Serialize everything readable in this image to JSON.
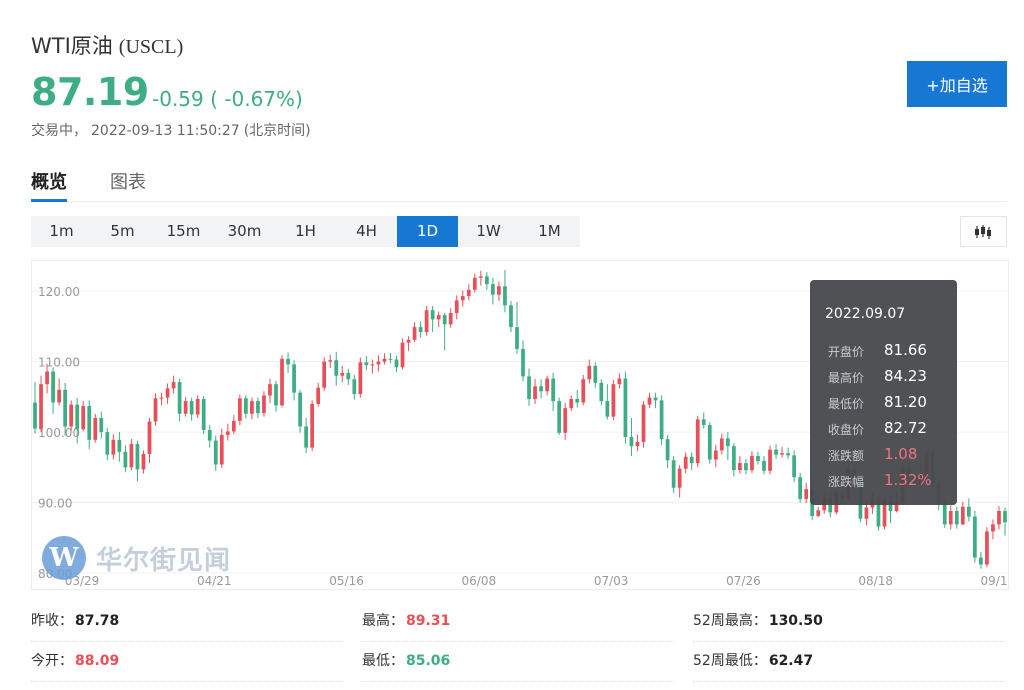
{
  "header": {
    "name": "WTI原油",
    "code": "(USCL)",
    "price": "87.19",
    "change": "-0.59 ( -0.67%)",
    "status": "交易中，",
    "datetime": "2022-09-13 11:50:27",
    "timezone": "(北京时间)",
    "add_button": "+加自选"
  },
  "tabs": [
    {
      "label": "概览",
      "active": true
    },
    {
      "label": "图表",
      "active": false
    }
  ],
  "intervals": [
    {
      "label": "1m"
    },
    {
      "label": "5m"
    },
    {
      "label": "15m"
    },
    {
      "label": "30m"
    },
    {
      "label": "1H"
    },
    {
      "label": "4H"
    },
    {
      "label": "1D",
      "active": true
    },
    {
      "label": "1W"
    },
    {
      "label": "1M"
    }
  ],
  "chart_type_icon": "candlestick-icon",
  "watermark": {
    "logo": "W",
    "text": "华尔街见闻"
  },
  "tooltip": {
    "date": "2022.09.07",
    "rows": [
      {
        "label": "开盘价",
        "value": "81.66",
        "color": "normal"
      },
      {
        "label": "最高价",
        "value": "84.23",
        "color": "normal"
      },
      {
        "label": "最低价",
        "value": "81.20",
        "color": "normal"
      },
      {
        "label": "收盘价",
        "value": "82.72",
        "color": "normal"
      },
      {
        "label": "涨跌额",
        "value": "1.08",
        "color": "red"
      },
      {
        "label": "涨跌幅",
        "value": "1.32%",
        "color": "red"
      }
    ]
  },
  "stats": [
    {
      "label": "昨收：",
      "value": "87.78",
      "color": "dark"
    },
    {
      "label": "最高：",
      "value": "89.31",
      "color": "red"
    },
    {
      "label": "52周最高：",
      "value": "130.50",
      "color": "dark"
    },
    {
      "label": "今开：",
      "value": "88.09",
      "color": "red"
    },
    {
      "label": "最低：",
      "value": "85.06",
      "color": "green"
    },
    {
      "label": "52周最低：",
      "value": "62.47",
      "color": "dark"
    }
  ],
  "colors": {
    "up": "#e94f58",
    "down": "#3dad83",
    "accent": "#1678d3"
  },
  "chart_data": {
    "type": "candlestick",
    "y_ticks": [
      "120.00",
      "110.00",
      "100.00",
      "90.00",
      "80.00"
    ],
    "ylim": [
      80,
      124
    ],
    "x_ticks": [
      "03/29",
      "04/21",
      "05/16",
      "06/08",
      "07/03",
      "07/26",
      "08/18",
      "09/1"
    ],
    "grid": true,
    "candles": [
      [
        104.2,
        100.5,
        99.8,
        107.1
      ],
      [
        100.5,
        106.8,
        100.0,
        108.0
      ],
      [
        106.8,
        108.6,
        105.5,
        109.7
      ],
      [
        108.6,
        104.2,
        102.6,
        109.2
      ],
      [
        104.2,
        106.0,
        103.8,
        107.6
      ],
      [
        106.0,
        100.8,
        99.5,
        107.0
      ],
      [
        100.8,
        103.9,
        100.2,
        104.5
      ],
      [
        103.9,
        100.4,
        98.4,
        104.8
      ],
      [
        100.4,
        103.7,
        100.1,
        104.4
      ],
      [
        103.7,
        98.9,
        97.6,
        104.5
      ],
      [
        98.9,
        102.0,
        98.5,
        102.6
      ],
      [
        102.0,
        100.0,
        99.1,
        102.9
      ],
      [
        100.0,
        96.8,
        96.0,
        100.6
      ],
      [
        96.8,
        98.9,
        96.1,
        99.7
      ],
      [
        98.9,
        97.2,
        95.8,
        100.0
      ],
      [
        97.2,
        95.0,
        94.3,
        98.1
      ],
      [
        95.0,
        98.3,
        94.6,
        99.0
      ],
      [
        98.3,
        94.7,
        93.0,
        98.8
      ],
      [
        94.7,
        96.9,
        94.1,
        97.4
      ],
      [
        96.9,
        101.5,
        95.6,
        102.0
      ],
      [
        101.5,
        104.8,
        100.9,
        105.5
      ],
      [
        104.8,
        104.9,
        103.8,
        105.6
      ],
      [
        104.9,
        106.2,
        104.0,
        106.9
      ],
      [
        106.2,
        107.1,
        105.5,
        108.0
      ],
      [
        107.1,
        102.6,
        101.5,
        107.6
      ],
      [
        102.6,
        104.4,
        102.2,
        105.0
      ],
      [
        104.4,
        102.5,
        101.6,
        104.9
      ],
      [
        102.5,
        104.7,
        102.0,
        105.2
      ],
      [
        104.7,
        100.3,
        99.7,
        105.1
      ],
      [
        100.3,
        98.8,
        97.8,
        101.0
      ],
      [
        98.8,
        95.4,
        94.5,
        99.5
      ],
      [
        95.4,
        99.6,
        94.9,
        100.5
      ],
      [
        99.6,
        100.1,
        98.8,
        101.2
      ],
      [
        100.1,
        101.6,
        99.7,
        102.4
      ],
      [
        101.6,
        104.8,
        101.0,
        105.3
      ],
      [
        104.8,
        102.6,
        101.9,
        105.2
      ],
      [
        102.6,
        104.4,
        101.8,
        104.9
      ],
      [
        104.4,
        102.7,
        102.0,
        104.9
      ],
      [
        102.7,
        105.2,
        102.2,
        105.8
      ],
      [
        105.2,
        106.8,
        104.1,
        107.6
      ],
      [
        106.8,
        103.8,
        102.9,
        107.3
      ],
      [
        103.8,
        110.4,
        103.5,
        110.9
      ],
      [
        110.4,
        109.6,
        108.4,
        111.3
      ],
      [
        109.6,
        105.6,
        104.5,
        110.2
      ],
      [
        105.6,
        100.8,
        99.9,
        106.0
      ],
      [
        100.8,
        97.8,
        97.0,
        102.0
      ],
      [
        97.8,
        104.0,
        97.3,
        104.5
      ],
      [
        104.0,
        106.3,
        103.6,
        107.0
      ],
      [
        106.3,
        110.0,
        105.9,
        110.6
      ],
      [
        110.0,
        110.2,
        109.1,
        111.0
      ],
      [
        110.2,
        108.0,
        106.6,
        111.4
      ],
      [
        108.0,
        108.4,
        107.1,
        109.4
      ],
      [
        108.4,
        107.5,
        106.7,
        109.0
      ],
      [
        107.5,
        105.4,
        104.6,
        108.1
      ],
      [
        105.4,
        109.9,
        104.9,
        110.6
      ],
      [
        109.9,
        109.5,
        108.8,
        110.8
      ],
      [
        109.5,
        109.6,
        108.3,
        110.3
      ],
      [
        109.6,
        110.0,
        108.6,
        110.9
      ],
      [
        110.0,
        110.4,
        109.6,
        111.2
      ],
      [
        110.4,
        110.3,
        109.8,
        111.2
      ],
      [
        110.3,
        109.2,
        108.5,
        110.8
      ],
      [
        109.2,
        112.7,
        108.9,
        113.3
      ],
      [
        112.7,
        113.1,
        111.5,
        113.6
      ],
      [
        113.1,
        114.9,
        112.8,
        115.6
      ],
      [
        114.9,
        114.2,
        113.4,
        115.7
      ],
      [
        114.2,
        117.3,
        113.7,
        117.9
      ],
      [
        117.3,
        116.0,
        114.2,
        117.9
      ],
      [
        116.0,
        116.6,
        114.9,
        117.1
      ],
      [
        116.6,
        115.3,
        111.6,
        116.9
      ],
      [
        115.3,
        116.9,
        114.8,
        117.6
      ],
      [
        116.9,
        118.7,
        116.0,
        119.4
      ],
      [
        118.7,
        119.3,
        117.8,
        120.1
      ],
      [
        119.3,
        120.2,
        118.7,
        121.0
      ],
      [
        120.2,
        121.9,
        119.8,
        122.5
      ],
      [
        121.9,
        122.1,
        120.8,
        122.9
      ],
      [
        122.1,
        121.0,
        120.2,
        122.7
      ],
      [
        121.0,
        119.5,
        118.1,
        121.9
      ],
      [
        119.5,
        120.7,
        118.6,
        121.4
      ],
      [
        120.7,
        118.0,
        117.0,
        123.0
      ],
      [
        118.0,
        114.9,
        114.2,
        118.6
      ],
      [
        114.9,
        111.8,
        111.1,
        118.5
      ],
      [
        111.8,
        107.9,
        107.2,
        113.0
      ],
      [
        107.9,
        104.7,
        103.7,
        109.0
      ],
      [
        104.7,
        106.5,
        104.0,
        107.5
      ],
      [
        106.5,
        105.8,
        104.8,
        107.5
      ],
      [
        105.8,
        107.6,
        105.2,
        108.0
      ],
      [
        107.6,
        104.4,
        103.0,
        108.4
      ],
      [
        104.4,
        99.9,
        99.6,
        104.9
      ],
      [
        99.9,
        103.4,
        98.9,
        104.1
      ],
      [
        103.4,
        104.7,
        103.0,
        105.2
      ],
      [
        104.7,
        104.2,
        103.5,
        106.0
      ],
      [
        104.2,
        107.5,
        103.8,
        108.1
      ],
      [
        107.5,
        109.4,
        106.9,
        110.3
      ],
      [
        109.4,
        107.0,
        106.3,
        109.9
      ],
      [
        107.0,
        104.4,
        103.8,
        107.5
      ],
      [
        104.4,
        102.2,
        101.8,
        106.8
      ],
      [
        102.2,
        106.8,
        101.7,
        107.4
      ],
      [
        106.8,
        107.6,
        106.2,
        108.3
      ],
      [
        107.6,
        99.3,
        98.4,
        108.6
      ],
      [
        99.3,
        98.0,
        96.6,
        102.0
      ],
      [
        98.0,
        98.6,
        97.3,
        99.6
      ],
      [
        98.6,
        103.9,
        97.8,
        104.4
      ],
      [
        103.9,
        104.9,
        103.4,
        105.6
      ],
      [
        104.9,
        104.5,
        103.4,
        105.6
      ],
      [
        104.5,
        99.0,
        98.2,
        105.2
      ],
      [
        99.0,
        96.0,
        94.9,
        99.6
      ],
      [
        96.0,
        92.1,
        91.4,
        96.6
      ],
      [
        92.1,
        94.8,
        90.7,
        95.3
      ],
      [
        94.8,
        96.5,
        94.2,
        97.1
      ],
      [
        96.5,
        95.6,
        94.6,
        97.1
      ],
      [
        95.6,
        101.8,
        95.0,
        102.3
      ],
      [
        101.8,
        101.0,
        100.5,
        102.8
      ],
      [
        101.0,
        96.1,
        95.5,
        101.4
      ],
      [
        96.1,
        97.4,
        95.0,
        98.2
      ],
      [
        97.4,
        99.1,
        96.8,
        99.8
      ],
      [
        99.1,
        98.0,
        96.0,
        100.0
      ],
      [
        98.0,
        94.6,
        93.7,
        98.4
      ],
      [
        94.6,
        95.6,
        94.1,
        96.6
      ],
      [
        95.6,
        94.6,
        94.0,
        96.2
      ],
      [
        94.6,
        96.6,
        94.2,
        97.3
      ],
      [
        96.6,
        95.9,
        95.4,
        97.2
      ],
      [
        95.9,
        94.5,
        94.0,
        96.6
      ],
      [
        94.5,
        97.5,
        94.0,
        98.1
      ],
      [
        97.5,
        96.8,
        96.2,
        98.3
      ],
      [
        96.8,
        97.0,
        96.4,
        97.9
      ],
      [
        97.0,
        96.7,
        96.2,
        97.8
      ],
      [
        96.7,
        93.6,
        92.9,
        97.4
      ],
      [
        93.6,
        90.5,
        90.0,
        94.2
      ],
      [
        90.5,
        91.9,
        89.9,
        92.8
      ],
      [
        91.9,
        88.1,
        87.5,
        92.6
      ],
      [
        88.1,
        88.9,
        87.9,
        89.4
      ],
      [
        88.9,
        90.7,
        88.4,
        91.2
      ],
      [
        90.7,
        88.6,
        87.9,
        91.5
      ],
      [
        88.6,
        91.4,
        88.3,
        91.9
      ],
      [
        91.4,
        90.6,
        89.9,
        93.0
      ],
      [
        90.6,
        94.7,
        90.2,
        95.6
      ],
      [
        94.7,
        92.6,
        91.3,
        95.4
      ],
      [
        92.6,
        87.7,
        87.2,
        93.4
      ],
      [
        87.7,
        89.3,
        86.8,
        90.2
      ],
      [
        89.3,
        90.4,
        88.4,
        91.4
      ],
      [
        90.4,
        86.6,
        86.0,
        91.0
      ],
      [
        86.6,
        90.2,
        86.2,
        90.8
      ],
      [
        90.2,
        88.8,
        87.1,
        91.3
      ],
      [
        88.8,
        90.0,
        88.6,
        91.7
      ],
      [
        90.0,
        94.9,
        89.7,
        95.6
      ],
      [
        94.9,
        93.8,
        92.7,
        95.7
      ],
      [
        93.8,
        92.5,
        91.9,
        94.7
      ],
      [
        92.5,
        93.8,
        92.1,
        95.7
      ],
      [
        93.8,
        97.0,
        93.3,
        97.5
      ],
      [
        97.0,
        92.5,
        91.9,
        97.6
      ],
      [
        92.5,
        89.8,
        88.9,
        93.4
      ],
      [
        89.8,
        86.9,
        86.4,
        90.3
      ],
      [
        86.9,
        88.8,
        86.2,
        89.6
      ],
      [
        88.8,
        86.9,
        86.3,
        89.4
      ],
      [
        86.9,
        89.4,
        86.8,
        90.1
      ],
      [
        89.4,
        88.0,
        87.3,
        90.6
      ],
      [
        88.0,
        82.2,
        81.5,
        88.8
      ],
      [
        82.2,
        81.2,
        80.6,
        83.0
      ],
      [
        81.2,
        85.9,
        80.8,
        86.5
      ],
      [
        85.9,
        86.9,
        84.8,
        87.6
      ],
      [
        86.9,
        88.8,
        86.2,
        89.5
      ],
      [
        88.8,
        87.2,
        85.3,
        89.3
      ]
    ]
  }
}
